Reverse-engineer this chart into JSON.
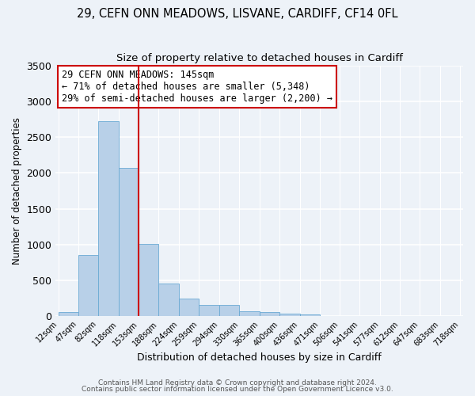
{
  "title1": "29, CEFN ONN MEADOWS, LISVANE, CARDIFF, CF14 0FL",
  "title2": "Size of property relative to detached houses in Cardiff",
  "xlabel": "Distribution of detached houses by size in Cardiff",
  "ylabel": "Number of detached properties",
  "bar_edges": [
    12,
    47,
    82,
    118,
    153,
    188,
    224,
    259,
    294,
    330,
    365,
    400,
    436,
    471,
    506,
    541,
    577,
    612,
    647,
    683,
    718
  ],
  "bar_heights": [
    55,
    850,
    2730,
    2075,
    1005,
    460,
    250,
    155,
    155,
    65,
    55,
    35,
    25,
    0,
    0,
    0,
    0,
    0,
    0,
    0
  ],
  "bar_color": "#b8d0e8",
  "bar_edgecolor": "#6aaad4",
  "vline_x": 153,
  "vline_color": "#cc0000",
  "annotation_line1": "29 CEFN ONN MEADOWS: 145sqm",
  "annotation_line2": "← 71% of detached houses are smaller (5,348)",
  "annotation_line3": "29% of semi-detached houses are larger (2,200) →",
  "annotation_box_color": "white",
  "annotation_box_edgecolor": "#cc0000",
  "ylim": [
    0,
    3500
  ],
  "yticks": [
    0,
    500,
    1000,
    1500,
    2000,
    2500,
    3000,
    3500
  ],
  "tick_labels": [
    "12sqm",
    "47sqm",
    "82sqm",
    "118sqm",
    "153sqm",
    "188sqm",
    "224sqm",
    "259sqm",
    "294sqm",
    "330sqm",
    "365sqm",
    "400sqm",
    "436sqm",
    "471sqm",
    "506sqm",
    "541sqm",
    "577sqm",
    "612sqm",
    "647sqm",
    "683sqm",
    "718sqm"
  ],
  "footer1": "Contains HM Land Registry data © Crown copyright and database right 2024.",
  "footer2": "Contains public sector information licensed under the Open Government Licence v3.0.",
  "bg_color": "#edf2f8",
  "grid_color": "#ffffff",
  "title_fontsize": 10.5,
  "subtitle_fontsize": 9.5,
  "tick_fontsize": 7,
  "ylabel_fontsize": 8.5,
  "xlabel_fontsize": 9,
  "footer_fontsize": 6.5,
  "annotation_fontsize": 8.5
}
